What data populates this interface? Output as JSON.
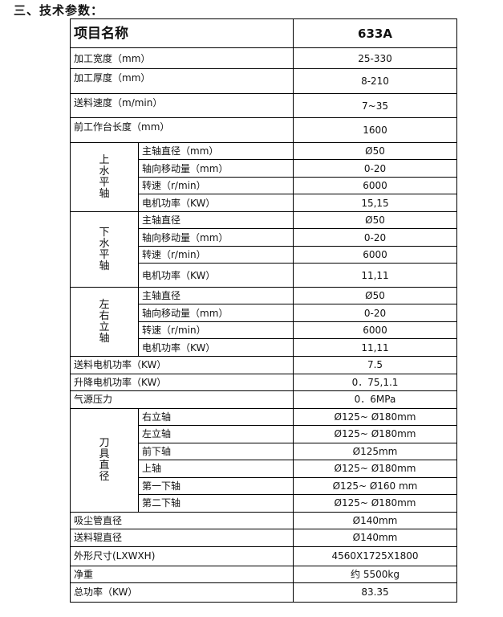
{
  "heading": "三、技术参数：",
  "header": {
    "label": "项目名称",
    "value": "633A"
  },
  "top_rows": [
    {
      "label": "加工宽度（mm）",
      "value": "25-330"
    },
    {
      "label": "加工厚度（mm）",
      "value": "8-210"
    },
    {
      "label": "送料速度（m/min）",
      "value": "7~35"
    },
    {
      "label": "前工作台长度（mm）",
      "value": "1600"
    }
  ],
  "groups": [
    {
      "name": "上水平轴",
      "rows": [
        {
          "label": "主轴直径（mm）",
          "value": "Ø50"
        },
        {
          "label": "轴向移动量（mm）",
          "value": "0-20"
        },
        {
          "label": "转速（r/min）",
          "value": "6000"
        },
        {
          "label": "电机功率（KW）",
          "value": "15,15"
        }
      ]
    },
    {
      "name": "下水平轴",
      "rows": [
        {
          "label": "主轴直径",
          "value": "Ø50"
        },
        {
          "label": "轴向移动量（mm）",
          "value": "0-20"
        },
        {
          "label": "转速（r/min）",
          "value": "6000"
        },
        {
          "label": "电机功率（KW）",
          "value": "11,11"
        }
      ]
    },
    {
      "name": "左右立轴",
      "rows": [
        {
          "label": "主轴直径",
          "value": "Ø50"
        },
        {
          "label": "轴向移动量（mm）",
          "value": "0-20"
        },
        {
          "label": "转速（r/min）",
          "value": "6000"
        },
        {
          "label": "电机功率（KW）",
          "value": "11,11"
        }
      ]
    }
  ],
  "mid_rows": [
    {
      "label": "送料电机功率（KW）",
      "value": "7.5"
    },
    {
      "label": "升降电机功率（KW）",
      "value": "0．75,1.1"
    },
    {
      "label": "气源压力",
      "value": "0．6MPa"
    }
  ],
  "tool_group": {
    "name": "刀具直径",
    "rows": [
      {
        "label": "右立轴",
        "value": "Ø125~ Ø180mm"
      },
      {
        "label": "左立轴",
        "value": "Ø125~ Ø180mm"
      },
      {
        "label": "前下轴",
        "value": "Ø125mm"
      },
      {
        "label": "上轴",
        "value": "Ø125~ Ø180mm"
      },
      {
        "label": "第一下轴",
        "value": "Ø125~ Ø160 mm"
      },
      {
        "label": "第二下轴",
        "value": "Ø125~ Ø180mm"
      }
    ]
  },
  "bottom_rows": [
    {
      "label": "吸尘管直径",
      "value": "Ø140mm"
    },
    {
      "label": "送料辊直径",
      "value": "Ø140mm"
    },
    {
      "label": "外形尺寸(LXWXH)",
      "value": "4560X1725X1800"
    },
    {
      "label": "净重",
      "value": "约 5500kg"
    },
    {
      "label": "总功率（KW）",
      "value": "83.35"
    }
  ]
}
